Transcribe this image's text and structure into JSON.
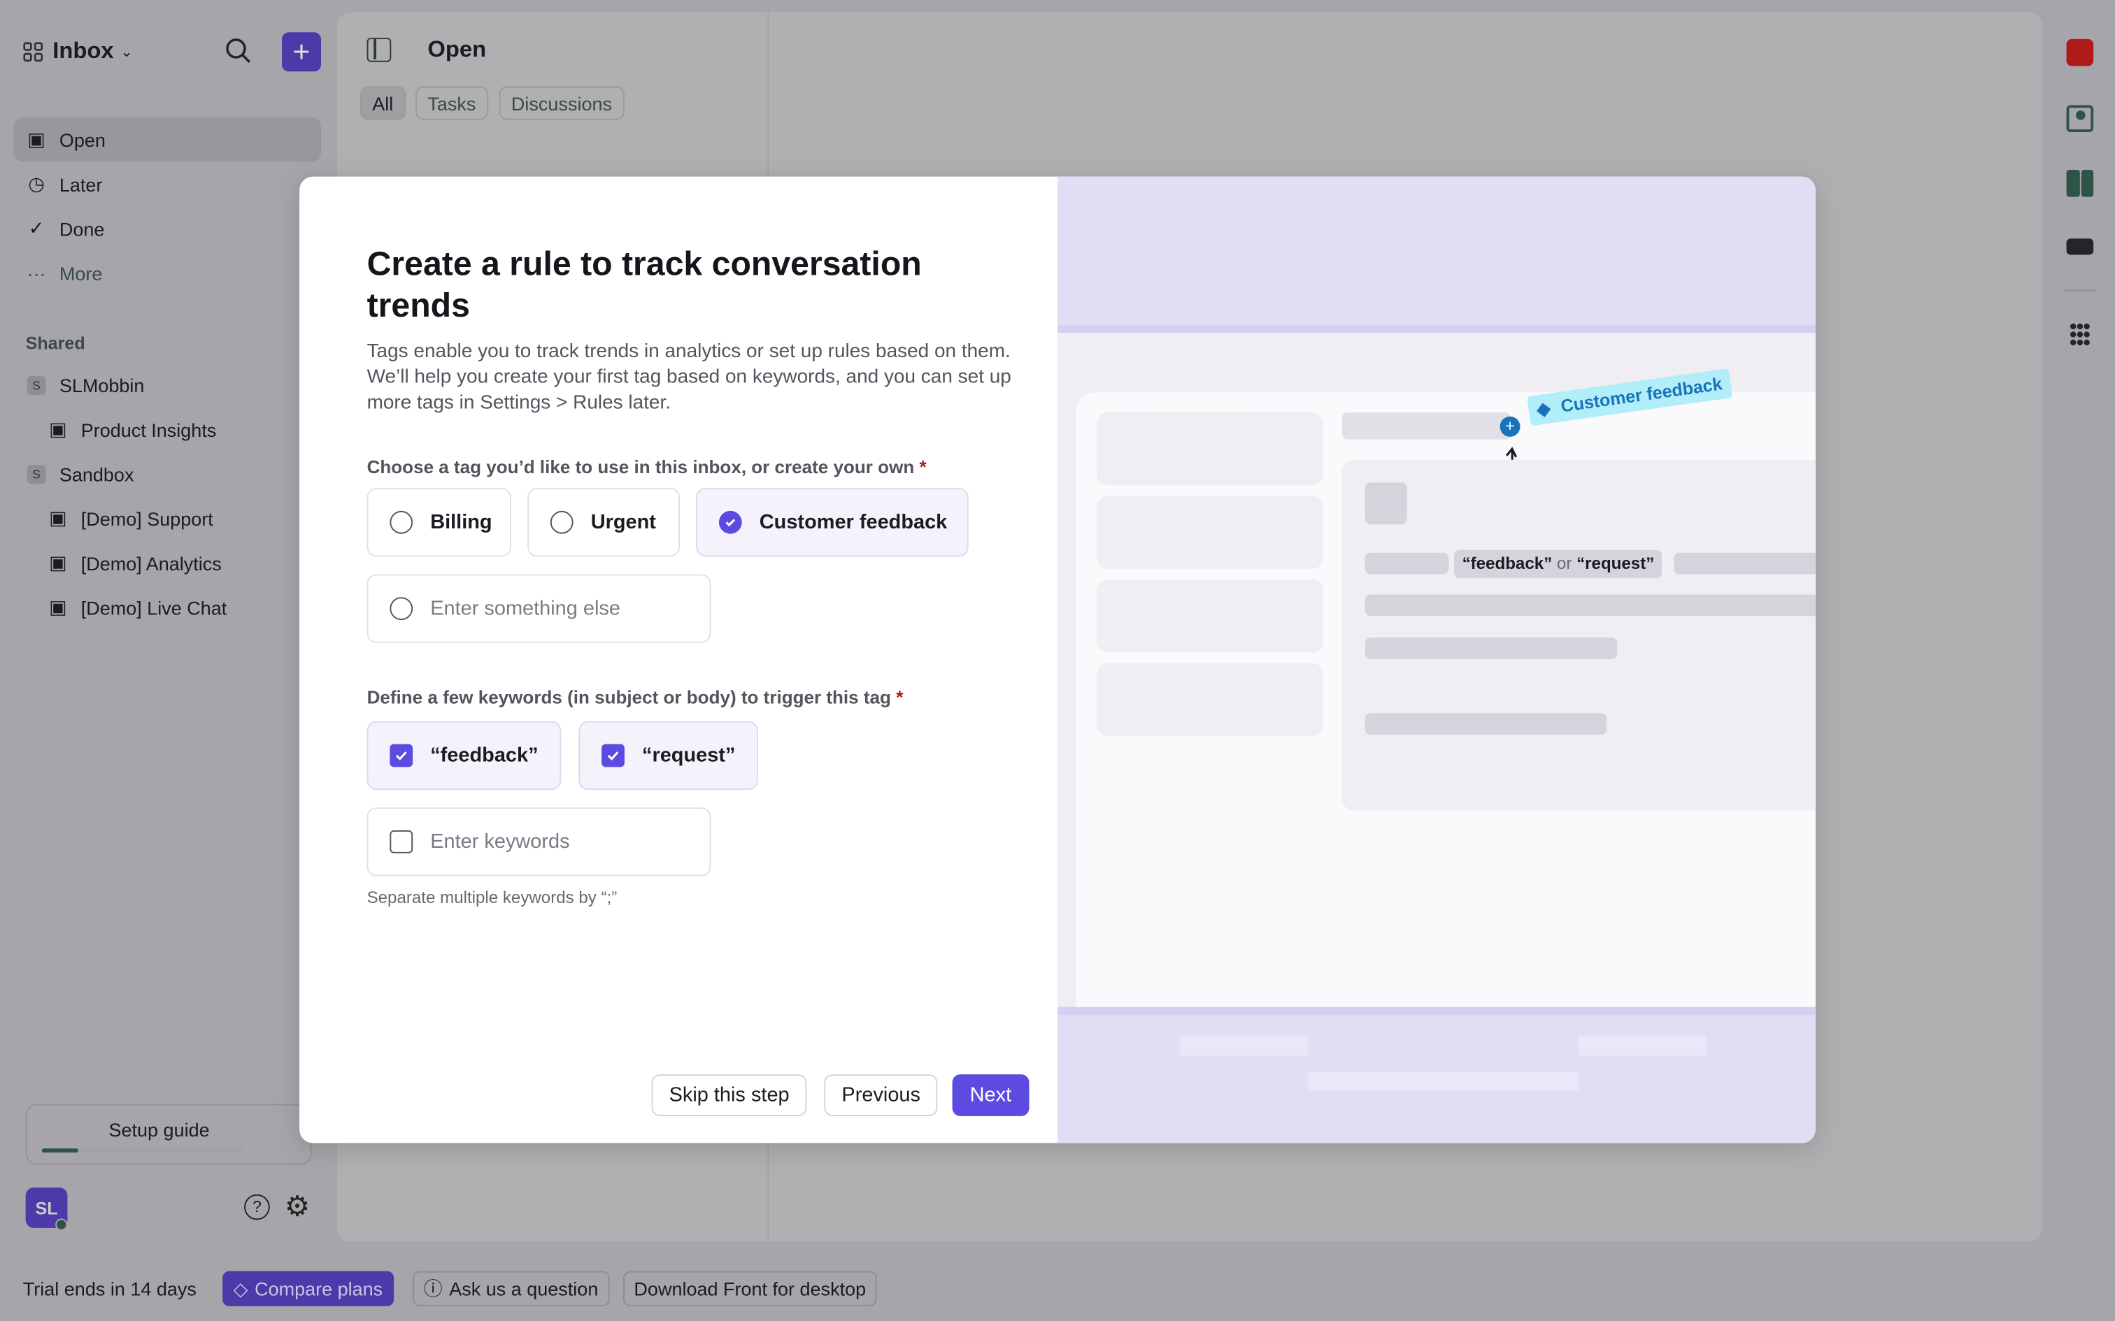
{
  "sidebar": {
    "inbox_title": "Inbox",
    "nav": [
      {
        "label": "Open",
        "icon": "inbox-icon"
      },
      {
        "label": "Later",
        "icon": "clock-icon"
      },
      {
        "label": "Done",
        "icon": "check-circle-icon"
      },
      {
        "label": "More",
        "icon": "more-icon"
      }
    ],
    "shared_label": "Shared",
    "shared": [
      {
        "label": "SLMobbin",
        "badge": "S"
      },
      {
        "label": "Product Insights"
      },
      {
        "label": "Sandbox",
        "badge": "S"
      },
      {
        "label": "[Demo] Support"
      },
      {
        "label": "[Demo] Analytics"
      },
      {
        "label": "[Demo] Live Chat"
      }
    ],
    "setup_guide": "Setup guide",
    "setup_progress": 0.18,
    "avatar": "SL"
  },
  "main": {
    "title": "Open",
    "tabs": [
      "All",
      "Tasks",
      "Discussions"
    ]
  },
  "modal": {
    "title": "Create a rule to track conversation trends",
    "description": "Tags enable you to track trends in analytics or set up rules based on them. We’ll help you create your first tag based on keywords, and you can set up more tags in Settings > Rules later.",
    "tag_label": "Choose a tag you’d like to use in this inbox, or create your own",
    "required": "*",
    "tags": [
      {
        "label": "Billing",
        "selected": false
      },
      {
        "label": "Urgent",
        "selected": false
      },
      {
        "label": "Customer feedback",
        "selected": true
      }
    ],
    "tag_placeholder": "Enter something else",
    "keywords_label": "Define a few keywords (in subject or body) to trigger this tag",
    "keywords": [
      {
        "label": "“feedback”",
        "checked": true
      },
      {
        "label": "“request”",
        "checked": true
      }
    ],
    "keyword_placeholder": "Enter keywords",
    "hint": "Separate multiple keywords by “;”",
    "skip": "Skip this step",
    "previous": "Previous",
    "next": "Next",
    "illustration": {
      "tag": "Customer feedback",
      "kw1": "“feedback”",
      "or": "or",
      "kw2": "“request”"
    }
  },
  "footer": {
    "trial": "Trial ends in 14 days",
    "compare": "Compare plans",
    "ask": "Ask us a question",
    "download": "Download Front for desktop"
  },
  "colors": {
    "accent": "#5b4be0",
    "tag_bg": "#b2eefa",
    "tag_text": "#1a73b8",
    "calendar": "#b01a1a"
  }
}
